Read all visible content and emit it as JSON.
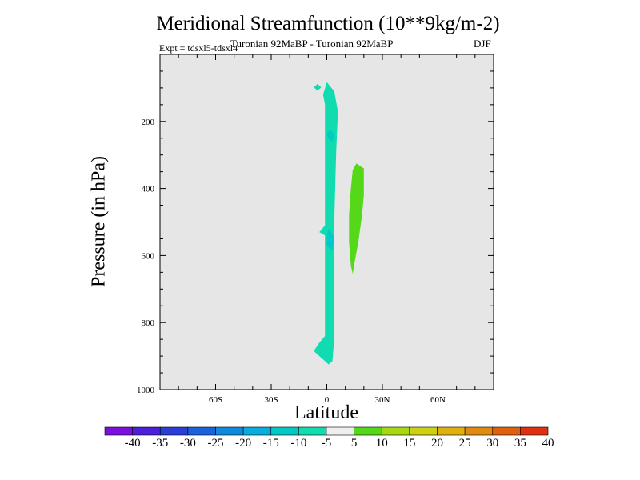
{
  "chart_data": {
    "type": "heatmap",
    "title": "Meridional Streamfunction (10**9kg/m-2)",
    "subtitle": "Turonian  92MaBP - Turonian  92MaBP",
    "experiment": "Expt = tdsxl5-tdsxl4",
    "season": "DJF",
    "xlabel": "Latitude",
    "ylabel": "Pressure (in hPa)",
    "xlim": [
      -90,
      90
    ],
    "ylim": [
      1000,
      0
    ],
    "x_ticks": [
      {
        "value": -60,
        "label": "60S"
      },
      {
        "value": -30,
        "label": "30S"
      },
      {
        "value": 0,
        "label": "0"
      },
      {
        "value": 30,
        "label": "30N"
      },
      {
        "value": 60,
        "label": "60N"
      }
    ],
    "y_ticks": [
      {
        "value": 200,
        "label": "200"
      },
      {
        "value": 400,
        "label": "400"
      },
      {
        "value": 600,
        "label": "600"
      },
      {
        "value": 800,
        "label": "800"
      },
      {
        "value": 1000,
        "label": "1000"
      }
    ],
    "contour_levels": [
      -40,
      -35,
      -30,
      -25,
      -20,
      -15,
      -10,
      -5,
      5,
      10,
      15,
      20,
      25,
      30,
      35,
      40
    ],
    "colorbar_colors": [
      "#7a0fe0",
      "#4b1fdc",
      "#2a3ed8",
      "#1a62dc",
      "#0d8adc",
      "#05aedc",
      "#03c8c8",
      "#10dcb0",
      "#eeeeee",
      "#55d818",
      "#a5d810",
      "#cfd010",
      "#e0b010",
      "#e08a10",
      "#e06010",
      "#e03010"
    ],
    "regions": [
      {
        "name": "negative cell (-5 to -10)",
        "color": "#10dcb0",
        "polygon": [
          [
            0,
            83
          ],
          [
            4,
            110
          ],
          [
            6,
            170
          ],
          [
            5,
            300
          ],
          [
            4,
            500
          ],
          [
            4,
            700
          ],
          [
            4,
            850
          ],
          [
            3,
            915
          ],
          [
            1,
            925
          ],
          [
            -1,
            915
          ],
          [
            -4,
            900
          ],
          [
            -7,
            885
          ],
          [
            -4,
            860
          ],
          [
            -1,
            840
          ],
          [
            -1,
            650
          ],
          [
            -1,
            540
          ],
          [
            -4,
            530
          ],
          [
            -1,
            510
          ],
          [
            -1,
            250
          ],
          [
            -1,
            150
          ],
          [
            -2,
            120
          ]
        ]
      },
      {
        "name": "negative patch (-10 to -15) upper",
        "color": "#03c8c8",
        "polygon": [
          [
            2,
            225
          ],
          [
            4,
            240
          ],
          [
            3,
            260
          ],
          [
            1,
            252
          ],
          [
            0,
            235
          ]
        ]
      },
      {
        "name": "negative patch (-10 to -15) lower",
        "color": "#03c8c8",
        "polygon": [
          [
            1,
            520
          ],
          [
            4,
            545
          ],
          [
            3,
            585
          ],
          [
            0,
            570
          ],
          [
            0,
            540
          ]
        ]
      },
      {
        "name": "small negative patch near 0",
        "color": "#10dcb0",
        "polygon": [
          [
            -5,
            88
          ],
          [
            -3,
            98
          ],
          [
            -5,
            108
          ],
          [
            -7,
            98
          ]
        ]
      },
      {
        "name": "positive cell (5 to 10)",
        "color": "#55d818",
        "polygon": [
          [
            16,
            325
          ],
          [
            20,
            340
          ],
          [
            20,
            420
          ],
          [
            19,
            480
          ],
          [
            17,
            560
          ],
          [
            15,
            620
          ],
          [
            14,
            655
          ],
          [
            13,
            630
          ],
          [
            12,
            560
          ],
          [
            12,
            480
          ],
          [
            13,
            400
          ],
          [
            14,
            345
          ]
        ]
      }
    ]
  }
}
